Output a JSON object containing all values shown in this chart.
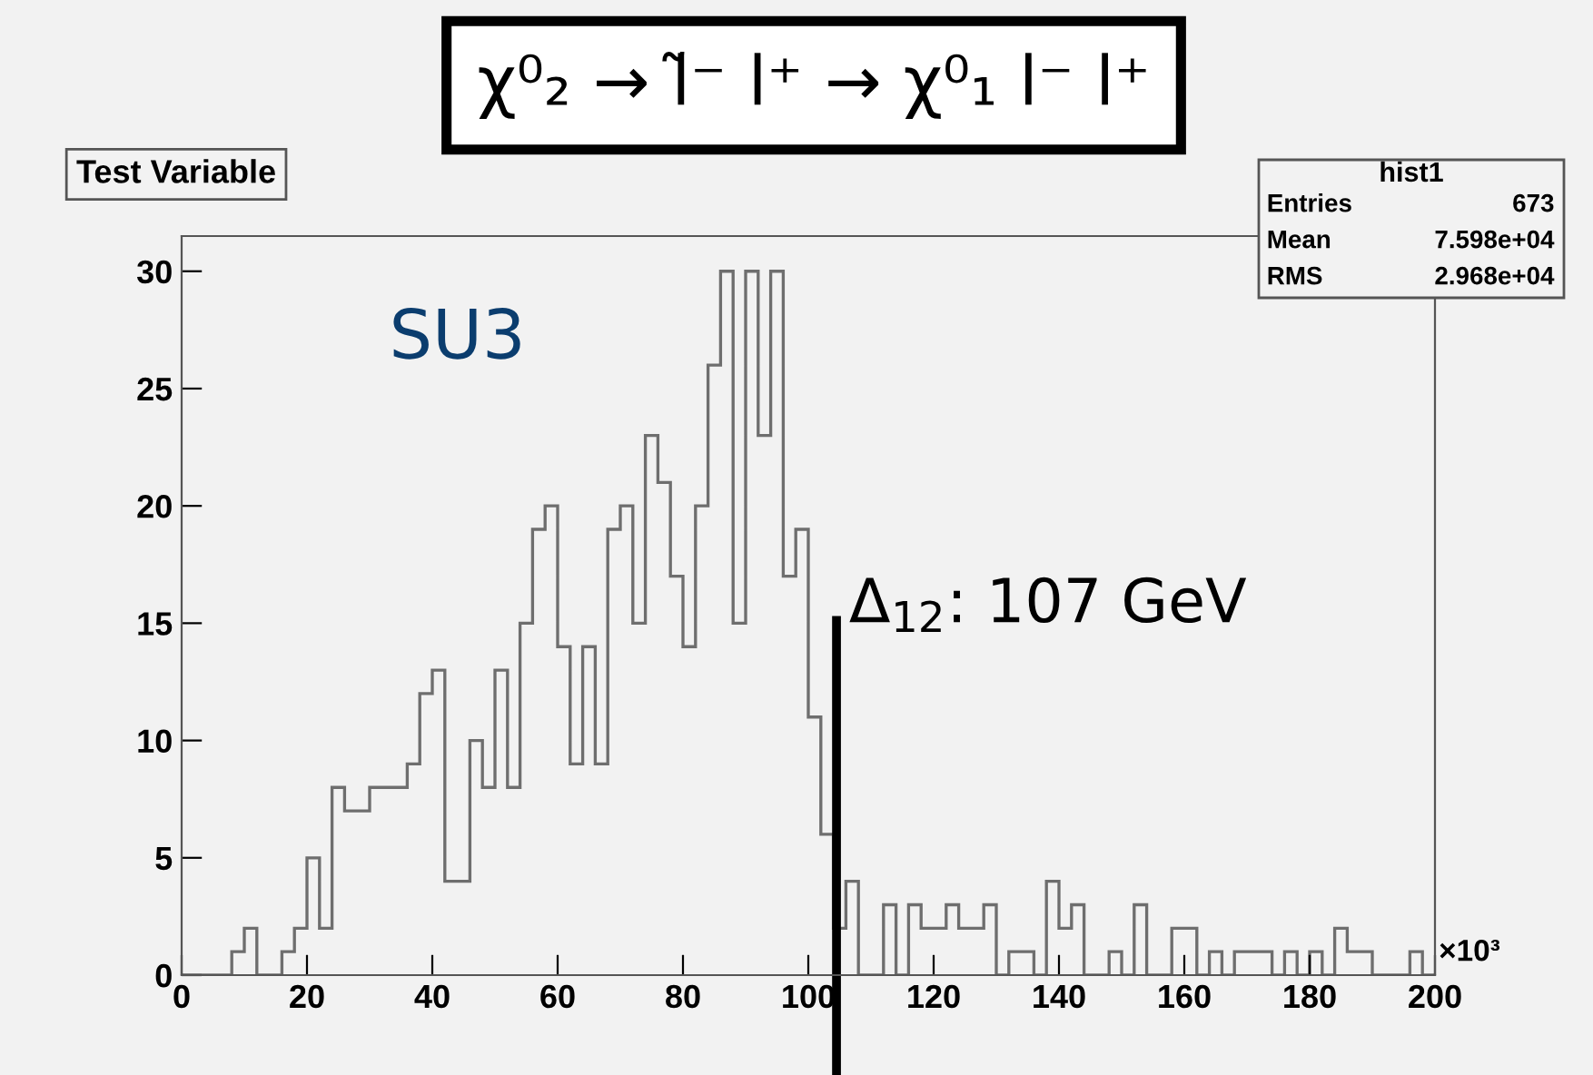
{
  "chart_data": {
    "type": "histogram",
    "title": "χ⁰₂ → l̃⁻ l⁺ → χ⁰₁ l⁻ l⁺",
    "subtitle": "Test Variable",
    "bins": [
      0,
      2,
      4,
      6,
      8,
      10,
      12,
      14,
      16,
      18,
      20,
      22,
      24,
      26,
      28,
      30,
      32,
      34,
      36,
      38,
      40,
      42,
      44,
      46,
      48,
      50,
      52,
      54,
      56,
      58,
      60,
      62,
      64,
      66,
      68,
      70,
      72,
      74,
      76,
      78,
      80,
      82,
      84,
      86,
      88,
      90,
      92,
      94,
      96,
      98,
      100,
      102,
      104,
      106,
      108,
      110,
      112,
      114,
      116,
      118,
      120,
      122,
      124,
      126,
      128,
      130,
      132,
      134,
      136,
      138,
      140,
      142,
      144,
      146,
      148,
      150,
      152,
      154,
      156,
      158,
      160,
      162,
      164,
      166,
      168,
      170,
      172,
      174,
      176,
      178,
      180,
      182,
      184,
      186,
      188,
      190,
      192,
      194,
      196,
      198,
      200
    ],
    "values": [
      0,
      0,
      0,
      0,
      1,
      2,
      0,
      0,
      1,
      2,
      5,
      2,
      8,
      7,
      7,
      8,
      8,
      8,
      9,
      12,
      13,
      4,
      4,
      10,
      8,
      13,
      8,
      15,
      19,
      20,
      14,
      9,
      14,
      9,
      19,
      20,
      15,
      23,
      21,
      17,
      14,
      20,
      26,
      30,
      15,
      30,
      23,
      30,
      17,
      19,
      11,
      6,
      2,
      4,
      0,
      0,
      3,
      0,
      3,
      2,
      2,
      3,
      2,
      2,
      3,
      0,
      1,
      1,
      0,
      4,
      2,
      3,
      0,
      0,
      1,
      0,
      3,
      0,
      0,
      2,
      2,
      0,
      1,
      0,
      1,
      1,
      1,
      0,
      1,
      0,
      1,
      0,
      2,
      1,
      1,
      0,
      0,
      0,
      1,
      0
    ],
    "color": "#6e6e6e",
    "xlim": [
      0,
      200
    ],
    "xticks": [
      0,
      20,
      40,
      60,
      80,
      100,
      120,
      140,
      160,
      180,
      200
    ],
    "ylim": [
      0,
      31.5
    ],
    "yticks": [
      0,
      5,
      10,
      15,
      20,
      25,
      30
    ],
    "grid": false,
    "ref_lines": [
      {
        "axis": "x",
        "value": 104.5,
        "color": "#000000"
      }
    ],
    "annotations": [
      "Δ$_{12}$: 107 GeV",
      "SU3",
      "×10³",
      "hist1",
      "Entries",
      "673",
      "Mean",
      "7.598e+04",
      "RMS",
      "2.968e+04"
    ]
  }
}
